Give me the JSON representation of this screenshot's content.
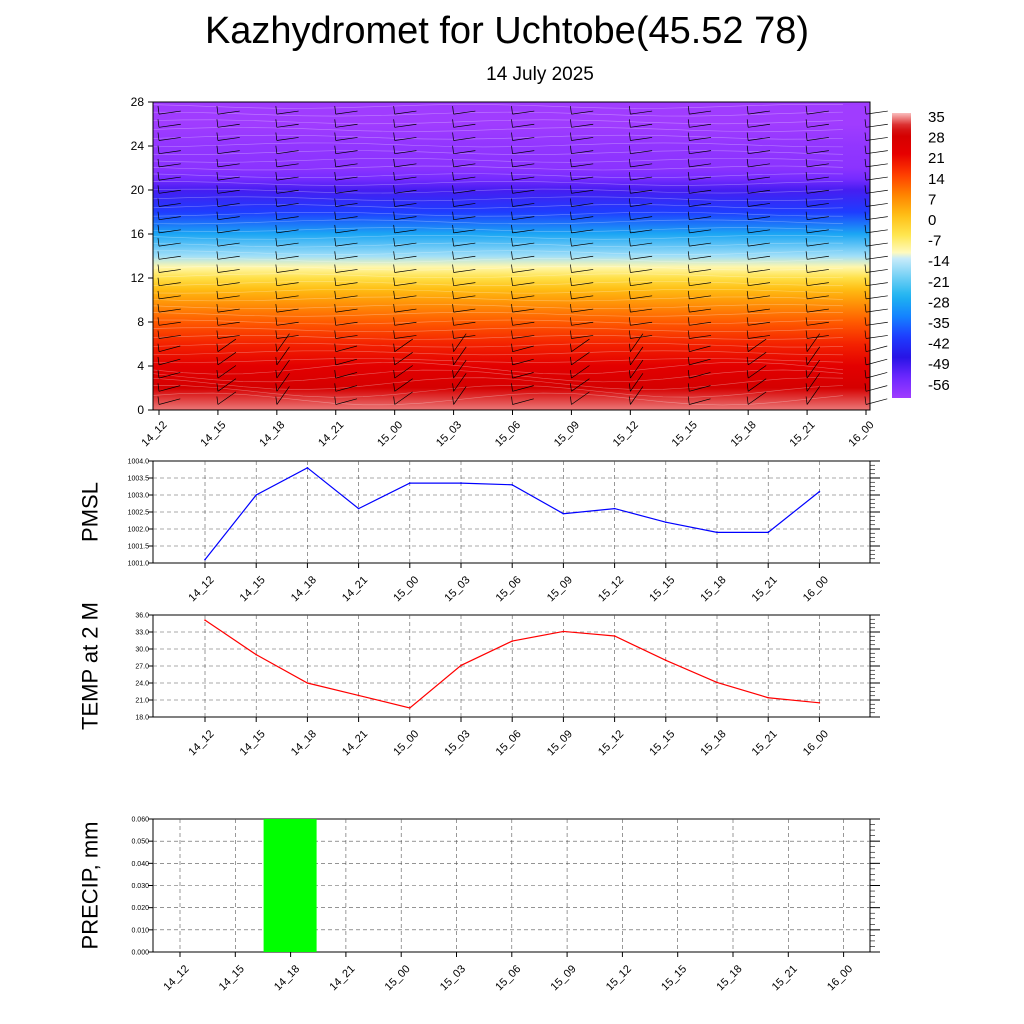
{
  "title": "Kazhydromet for Uchtobe(45.52 78)",
  "subtitle": "14 July 2025",
  "time_labels": [
    "14_12",
    "14_15",
    "14_18",
    "14_21",
    "15_00",
    "15_03",
    "15_06",
    "15_09",
    "15_12",
    "15_15",
    "15_18",
    "15_21",
    "16_00"
  ],
  "chart_data": [
    {
      "type": "heatmap",
      "title": "",
      "xlabel": "",
      "ylabel": "",
      "categories": [
        "14_12",
        "14_15",
        "14_18",
        "14_21",
        "15_00",
        "15_03",
        "15_06",
        "15_09",
        "15_12",
        "15_15",
        "15_18",
        "15_21",
        "16_00"
      ],
      "ylim": [
        0,
        28
      ],
      "yticks": [
        "0",
        "4",
        "8",
        "12",
        "16",
        "20",
        "24",
        "28"
      ],
      "colorbar_labels": [
        "35",
        "28",
        "21",
        "14",
        "7",
        "0",
        "-7",
        "-14",
        "-21",
        "-28",
        "-35",
        "-42",
        "-49",
        "-56"
      ],
      "colorbar_range": [
        -63,
        35
      ],
      "temperature_profile": [
        {
          "level": 0,
          "value": 33
        },
        {
          "level": 2,
          "value": 27
        },
        {
          "level": 4,
          "value": 22
        },
        {
          "level": 6,
          "value": 17
        },
        {
          "level": 8,
          "value": 11
        },
        {
          "level": 10,
          "value": 4
        },
        {
          "level": 11,
          "value": 0
        },
        {
          "level": 12,
          "value": -6
        },
        {
          "level": 13,
          "value": -12
        },
        {
          "level": 14,
          "value": -18
        },
        {
          "level": 16,
          "value": -30
        },
        {
          "level": 18,
          "value": -42
        },
        {
          "level": 20,
          "value": -52
        },
        {
          "level": 21,
          "value": -57
        },
        {
          "level": 22,
          "value": -60
        },
        {
          "level": 24,
          "value": -61
        },
        {
          "level": 26,
          "value": -63
        },
        {
          "level": 28,
          "value": -63
        }
      ],
      "grid": false,
      "wind_barbs": true
    },
    {
      "type": "line",
      "ylabel": "PMSL",
      "categories": [
        "14_12",
        "14_15",
        "14_18",
        "14_21",
        "15_00",
        "15_03",
        "15_06",
        "15_09",
        "15_12",
        "15_15",
        "15_18",
        "15_21",
        "16_00"
      ],
      "series": [
        {
          "values": [
            1001.1,
            1003.0,
            1003.8,
            1002.6,
            1003.35,
            1003.35,
            1003.3,
            1002.45,
            1002.6,
            1002.2,
            1001.9,
            1001.9,
            1003.1
          ]
        }
      ],
      "ylim": [
        1001.0,
        1004.0
      ],
      "yticks": [
        "1001.0",
        "1001.5",
        "1002.0",
        "1002.5",
        "1003.0",
        "1003.5",
        "1004.0"
      ],
      "color": "#0000ff",
      "grid": true
    },
    {
      "type": "line",
      "ylabel": "TEMP at 2 M",
      "categories": [
        "14_12",
        "14_15",
        "14_18",
        "14_21",
        "15_00",
        "15_03",
        "15_06",
        "15_09",
        "15_12",
        "15_15",
        "15_18",
        "15_21",
        "16_00"
      ],
      "series": [
        {
          "values": [
            35.1,
            29.0,
            24.0,
            21.8,
            19.6,
            27.1,
            31.4,
            33.1,
            32.3,
            28.0,
            24.1,
            21.4,
            20.5
          ]
        }
      ],
      "ylim": [
        18.0,
        36.0
      ],
      "yticks": [
        "18.0",
        "21.0",
        "24.0",
        "27.0",
        "30.0",
        "33.0",
        "36.0"
      ],
      "color": "#ff0000",
      "grid": true
    },
    {
      "type": "bar",
      "ylabel": "PRECIP, mm",
      "categories": [
        "14_12",
        "14_15",
        "14_18",
        "14_21",
        "15_00",
        "15_03",
        "15_06",
        "15_09",
        "15_12",
        "15_15",
        "15_18",
        "15_21",
        "16_00"
      ],
      "values": [
        0,
        0,
        0.06,
        0,
        0,
        0,
        0,
        0,
        0,
        0,
        0,
        0,
        0
      ],
      "ylim": [
        0,
        0.06
      ],
      "yticks": [
        "0.000",
        "0.010",
        "0.020",
        "0.030",
        "0.040",
        "0.050",
        "0.060"
      ],
      "color": "#00ff00",
      "grid": true
    }
  ]
}
